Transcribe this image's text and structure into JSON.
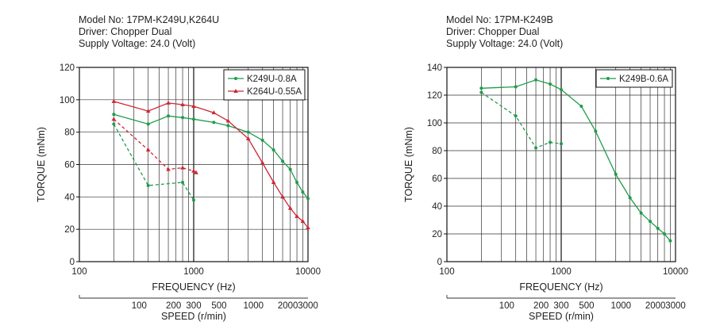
{
  "charts": [
    {
      "info": {
        "model": "Model No: 17PM-K249U,K264U",
        "driver": "Driver: Chopper Dual",
        "voltage": "Supply Voltage: 24.0 (Volt)"
      },
      "chart_data": {
        "type": "line",
        "xscale": "log",
        "xlim": [
          100,
          10000
        ],
        "ylim": [
          0,
          120
        ],
        "yticks": [
          0,
          20,
          40,
          60,
          80,
          100,
          120
        ],
        "xtick_labels": [
          {
            "v": 100,
            "t": "100"
          },
          {
            "v": 1000,
            "t": "1000"
          },
          {
            "v": 10000,
            "t": "10000"
          }
        ],
        "xlabel": "FREQUENCY (Hz)",
        "ylabel": "TORQUE (mNm)",
        "grid": true,
        "legend_position": "top-right",
        "speed_axis": {
          "label": "SPEED (r/min)",
          "ticks": [
            {
              "v": 100,
              "t": "100"
            },
            {
              "v": 200,
              "t": "200"
            },
            {
              "v": 300,
              "t": "300"
            },
            {
              "v": 500,
              "t": "500"
            },
            {
              "v": 1000,
              "t": "1000"
            },
            {
              "v": 2000,
              "t": "2000"
            },
            {
              "v": 3000,
              "t": "3000"
            }
          ],
          "max": 3000
        },
        "series": [
          {
            "name": "K249U-0.8A",
            "color": "#1e9c4a",
            "marker": "dot",
            "legend": true,
            "x": [
              200,
              400,
              600,
              800,
              1000,
              1500,
              2000,
              3000,
              4000,
              5000,
              6000,
              7000,
              8000,
              9000,
              10000
            ],
            "y": [
              91,
              85,
              90,
              89,
              88,
              86,
              84,
              80,
              75,
              69,
              62,
              57,
              49,
              43,
              39
            ]
          },
          {
            "name": "K264U-0.55A",
            "color": "#cf2534",
            "marker": "triangle",
            "legend": true,
            "x": [
              200,
              400,
              600,
              800,
              1000,
              1500,
              2000,
              3000,
              4000,
              5000,
              6000,
              7000,
              8000,
              9000,
              10000
            ],
            "y": [
              99,
              93,
              98,
              97,
              96,
              92,
              87,
              76,
              61,
              49,
              40,
              33,
              28,
              25,
              21
            ]
          },
          {
            "color": "#1e9c4a",
            "marker": "dot",
            "dashed": true,
            "legend": false,
            "x": [
              200,
              400,
              800,
              1000
            ],
            "y": [
              85,
              47,
              49,
              38
            ]
          },
          {
            "color": "#cf2534",
            "marker": "triangle",
            "dashed": true,
            "legend": false,
            "x": [
              200,
              400,
              600,
              800,
              1000,
              1050
            ],
            "y": [
              88,
              69,
              57,
              58,
              56,
              55
            ]
          }
        ]
      }
    },
    {
      "info": {
        "model": "Model No: 17PM-K249B",
        "driver": "Driver: Chopper Dual",
        "voltage": "Supply Voltage: 24.0 (Volt)"
      },
      "chart_data": {
        "type": "line",
        "xscale": "log",
        "xlim": [
          100,
          10000
        ],
        "ylim": [
          0,
          140
        ],
        "yticks": [
          0,
          20,
          40,
          60,
          80,
          100,
          120,
          140
        ],
        "xtick_labels": [
          {
            "v": 100,
            "t": "100"
          },
          {
            "v": 1000,
            "t": "1000"
          },
          {
            "v": 10000,
            "t": "10000"
          }
        ],
        "xlabel": "FREQUENCY (Hz)",
        "ylabel": "TORQUE (mNm)",
        "grid": true,
        "legend_position": "top-right",
        "speed_axis": {
          "label": "SPEED (r/min)",
          "ticks": [
            {
              "v": 100,
              "t": "100"
            },
            {
              "v": 200,
              "t": "200"
            },
            {
              "v": 300,
              "t": "300"
            },
            {
              "v": 500,
              "t": "500"
            },
            {
              "v": 1000,
              "t": "1000"
            },
            {
              "v": 2000,
              "t": "2000"
            },
            {
              "v": 3000,
              "t": "3000"
            }
          ],
          "max": 3000
        },
        "series": [
          {
            "name": "K249B-0.6A",
            "color": "#1e9c4a",
            "marker": "dot",
            "legend": true,
            "x": [
              200,
              400,
              600,
              800,
              1000,
              1500,
              2000,
              3000,
              4000,
              5000,
              6000,
              7000,
              8000,
              9000
            ],
            "y": [
              125,
              126,
              131,
              128,
              124,
              112,
              94,
              63,
              46,
              35,
              29,
              24,
              20,
              15
            ]
          },
          {
            "color": "#1e9c4a",
            "marker": "dot",
            "dashed": true,
            "legend": false,
            "x": [
              200,
              400,
              600,
              800,
              1000
            ],
            "y": [
              122,
              105,
              82,
              86,
              85
            ]
          }
        ]
      }
    }
  ]
}
